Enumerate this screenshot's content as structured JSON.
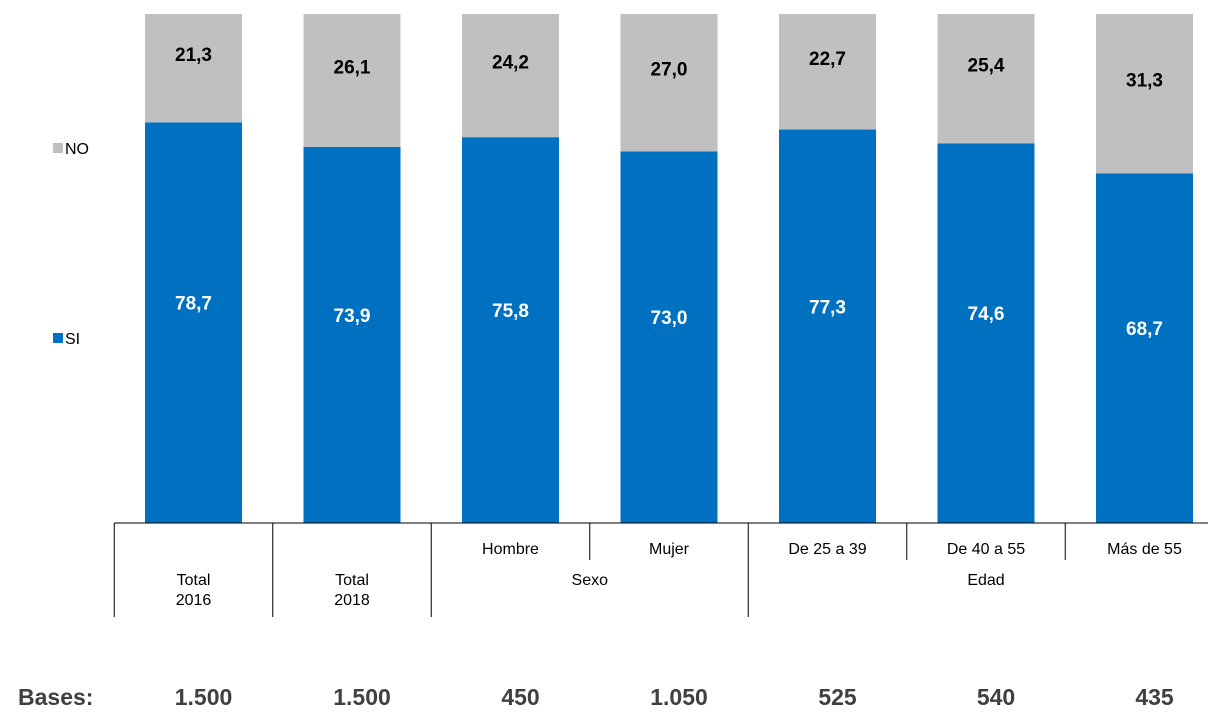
{
  "chart_data": {
    "type": "bar",
    "stacked": true,
    "percent_stacked": true,
    "categories": [
      "Total 2016",
      "Total 2018",
      "Hombre",
      "Mujer",
      "De 25 a 39",
      "De 40 a 55",
      "Más de 55"
    ],
    "series": [
      {
        "name": "SI",
        "color": "#0070C0",
        "values": [
          78.7,
          73.9,
          75.8,
          73.0,
          77.3,
          74.6,
          68.7
        ]
      },
      {
        "name": "NO",
        "color": "#C0C0C0",
        "values": [
          21.3,
          26.1,
          24.2,
          27.0,
          22.7,
          25.4,
          31.3
        ]
      }
    ],
    "data_labels": {
      "SI": [
        "78,7",
        "73,9",
        "75,8",
        "73,0",
        "77,3",
        "74,6",
        "68,7"
      ],
      "NO": [
        "21,3",
        "26,1",
        "24,2",
        "27,0",
        "22,7",
        "25,4",
        "31,3"
      ]
    },
    "ylim": [
      0,
      100
    ],
    "grid": false,
    "legend": {
      "placement": "left",
      "entries": [
        "NO",
        "SI"
      ]
    },
    "axis_table": {
      "row1": [
        "",
        "",
        "Hombre",
        "Mujer",
        "De 25 a 39",
        "De 40 a 55",
        "Más de 55"
      ],
      "row2_groups": [
        {
          "label": [
            "Total",
            "2016"
          ],
          "span": [
            0,
            0
          ]
        },
        {
          "label": [
            "Total",
            "2018"
          ],
          "span": [
            1,
            1
          ]
        },
        {
          "label": [
            "Sexo"
          ],
          "span": [
            2,
            3
          ]
        },
        {
          "label": [
            "Edad"
          ],
          "span": [
            4,
            6
          ]
        }
      ]
    },
    "bases": {
      "label": "Bases:",
      "values": [
        "1.500",
        "1.500",
        "450",
        "1.050",
        "525",
        "540",
        "435"
      ]
    }
  }
}
